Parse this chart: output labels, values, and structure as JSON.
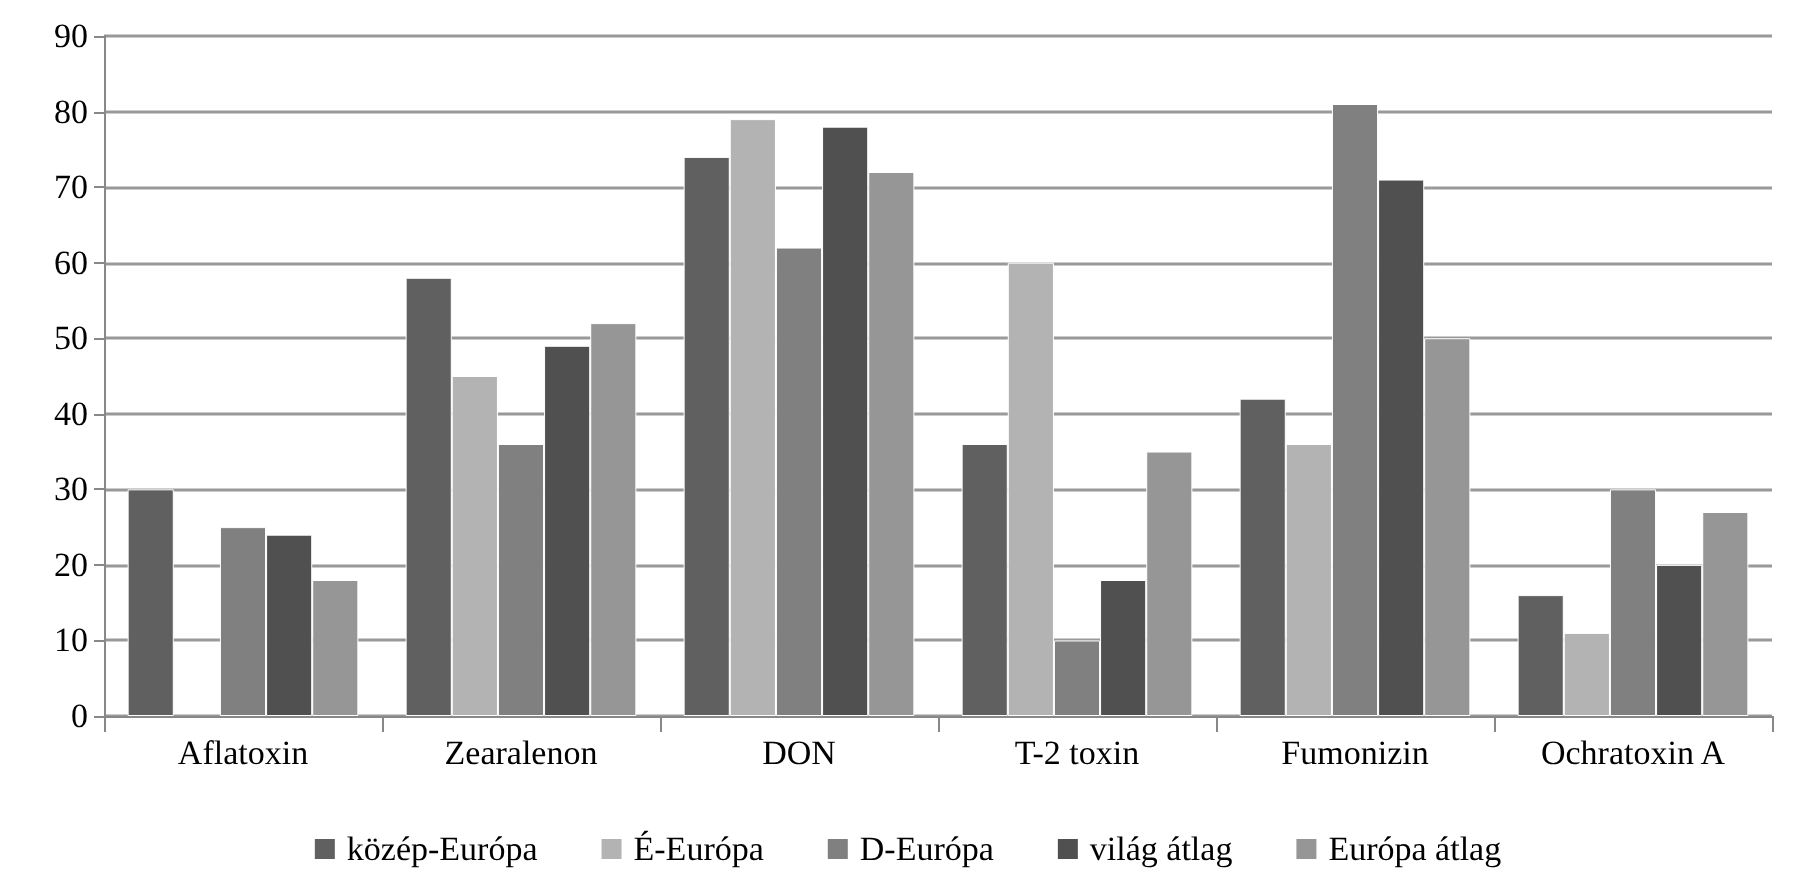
{
  "chart_data": {
    "type": "bar",
    "categories": [
      "Aflatoxin",
      "Zearalenon",
      "DON",
      "T-2 toxin",
      "Fumonizin",
      "Ochratoxin A"
    ],
    "series": [
      {
        "name": "közép-Európa",
        "color": "#606060",
        "values": [
          30,
          58,
          74,
          36,
          42,
          16
        ]
      },
      {
        "name": "É-Európa",
        "color": "#b3b3b3",
        "values": [
          null,
          45,
          79,
          60,
          36,
          11
        ]
      },
      {
        "name": "D-Európa",
        "color": "#808080",
        "values": [
          25,
          36,
          62,
          10,
          81,
          30
        ]
      },
      {
        "name": "világ átlag",
        "color": "#505050",
        "values": [
          24,
          49,
          78,
          18,
          71,
          20
        ]
      },
      {
        "name": "Európa átlag",
        "color": "#969696",
        "values": [
          18,
          52,
          72,
          35,
          50,
          27
        ]
      }
    ],
    "ylim": [
      0,
      90
    ],
    "yticks": [
      0,
      10,
      20,
      30,
      40,
      50,
      60,
      70,
      80,
      90
    ],
    "grid": "y",
    "legend": "bottom"
  }
}
